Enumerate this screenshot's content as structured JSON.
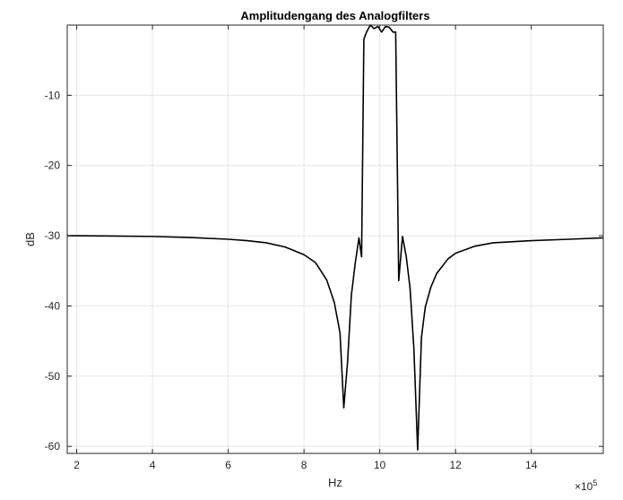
{
  "chart_data": {
    "type": "line",
    "title": "Amplitudengang des Analogfilters",
    "xlabel": "Hz",
    "ylabel": "dB",
    "x_exponent_label": "×10",
    "x_exponent_power": "5",
    "xlim": [
      1.75,
      15.9
    ],
    "ylim": [
      -61,
      0
    ],
    "xticks": [
      2,
      4,
      6,
      8,
      10,
      12,
      14
    ],
    "xtick_labels": [
      "2",
      "4",
      "6",
      "8",
      "10",
      "12",
      "14"
    ],
    "yticks": [
      -60,
      -50,
      -40,
      -30,
      -20,
      -10
    ],
    "ytick_labels": [
      "-60",
      "-50",
      "-40",
      "-30",
      "-20",
      "-10"
    ],
    "grid": true,
    "series": [
      {
        "color": "#000000",
        "x": [
          1.75,
          2,
          3,
          4,
          5,
          6,
          6.5,
          7,
          7.5,
          8,
          8.3,
          8.6,
          8.8,
          8.95,
          9.05,
          9.15,
          9.25,
          9.35,
          9.45,
          9.52,
          9.58,
          9.65,
          9.75,
          9.85,
          9.95,
          10.05,
          10.15,
          10.25,
          10.35,
          10.42,
          10.5,
          10.6,
          10.7,
          10.8,
          10.9,
          11.0,
          11.1,
          11.2,
          11.35,
          11.5,
          11.8,
          12,
          12.5,
          13,
          14,
          15,
          15.9
        ],
        "y": [
          -30.0,
          -30.0,
          -30.05,
          -30.1,
          -30.25,
          -30.5,
          -30.7,
          -31.0,
          -31.6,
          -32.7,
          -33.8,
          -36.3,
          -39.5,
          -43.8,
          -54.5,
          -48.0,
          -38.5,
          -34.0,
          -30.3,
          -33.0,
          -2.0,
          -1.0,
          0.0,
          -0.5,
          -0.2,
          -1.0,
          -0.2,
          -0.3,
          -1.0,
          -1.0,
          -36.4,
          -30.1,
          -33.0,
          -37.5,
          -46.0,
          -60.5,
          -44.5,
          -40.2,
          -37.3,
          -35.4,
          -33.3,
          -32.5,
          -31.5,
          -31.0,
          -30.7,
          -30.5,
          -30.3
        ]
      }
    ]
  }
}
